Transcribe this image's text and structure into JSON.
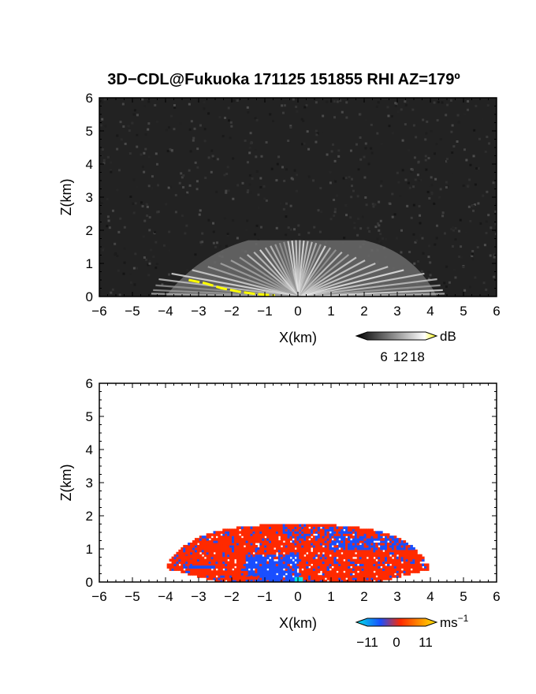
{
  "title": "3D−CDL@Fukuoka 171125 151855 RHI AZ=179º",
  "chart_data": [
    {
      "type": "heatmap",
      "name": "reflectivity-panel",
      "xlabel": "X(km)",
      "ylabel": "Z(km)",
      "xlim": [
        -6,
        6
      ],
      "ylim": [
        0,
        6
      ],
      "x_ticks": [
        "−6",
        "−5",
        "−4",
        "−3",
        "−2",
        "−1",
        "0",
        "1",
        "2",
        "3",
        "4",
        "5",
        "6"
      ],
      "y_ticks": [
        "0",
        "1",
        "2",
        "3",
        "4",
        "5",
        "6"
      ],
      "echo_extent": {
        "x": [
          -4,
          4.2
        ],
        "top_z": 1.7
      },
      "yellow_trace": [
        {
          "x": -3.3,
          "z": 0.5
        },
        {
          "x": -2.8,
          "z": 0.4
        },
        {
          "x": -2.3,
          "z": 0.25
        },
        {
          "x": -1.8,
          "z": 0.15
        },
        {
          "x": -1.3,
          "z": 0.08
        },
        {
          "x": -0.7,
          "z": 0.03
        }
      ],
      "colorbar": {
        "unit": "dB",
        "tick_labels": [
          "6",
          "12",
          "18"
        ],
        "range": [
          0,
          21
        ],
        "colors": [
          "#000000",
          "#ffffff",
          "#ffff00"
        ]
      },
      "background": "#222222"
    },
    {
      "type": "heatmap",
      "name": "doppler-velocity-panel",
      "xlabel": "X(km)",
      "ylabel": "Z(km)",
      "xlim": [
        -6,
        6
      ],
      "ylim": [
        0,
        6
      ],
      "x_ticks": [
        "−6",
        "−5",
        "−4",
        "−3",
        "−2",
        "−1",
        "0",
        "1",
        "2",
        "3",
        "4",
        "5",
        "6"
      ],
      "y_ticks": [
        "0",
        "1",
        "2",
        "3",
        "4",
        "5",
        "6"
      ],
      "echo_extent": {
        "x": [
          -4.1,
          4.0
        ],
        "top_z": 1.7
      },
      "colorbar": {
        "unit": "ms",
        "unit_exponent": "−1",
        "tick_labels": [
          "−11",
          "0",
          "11"
        ],
        "range": [
          -11,
          11
        ],
        "colors": [
          "#00e5e5",
          "#1a4fff",
          "#ff2a00",
          "#ffe600"
        ]
      },
      "background": "#ffffff"
    }
  ]
}
